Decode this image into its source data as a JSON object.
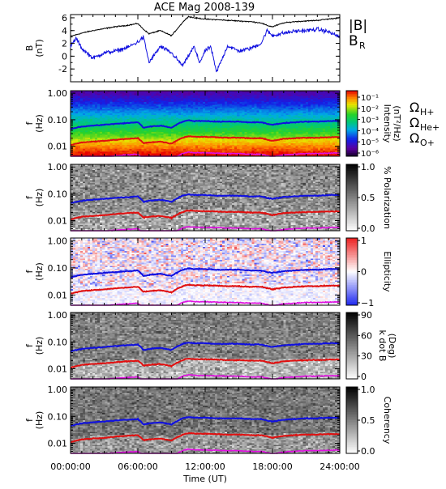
{
  "chart_data": [
    {
      "type": "line",
      "title": "ACE Mag 2008-139",
      "ylabel": [
        "B",
        "(nT)"
      ],
      "yticks": [
        "6",
        "4",
        "2",
        "0",
        "-2"
      ],
      "ylim": [
        -4,
        6.5
      ],
      "xlim": [
        0,
        24
      ],
      "series": [
        {
          "name": "|B|",
          "color": "#000000",
          "x": [
            0,
            1,
            2,
            3,
            4,
            5,
            6,
            6.5,
            7,
            8,
            9,
            10,
            10.5,
            11,
            12,
            13,
            14,
            15,
            16,
            17,
            17.5,
            18,
            19,
            20,
            21,
            22,
            23,
            24
          ],
          "y": [
            3.1,
            3.6,
            4.0,
            4.3,
            4.6,
            4.8,
            5.1,
            4.2,
            3.5,
            4.0,
            3.2,
            5.3,
            6.2,
            6.0,
            5.8,
            5.7,
            5.6,
            5.5,
            5.4,
            5.2,
            4.8,
            4.6,
            5.2,
            5.4,
            5.5,
            5.6,
            5.8,
            6.0
          ]
        },
        {
          "name": "B_R",
          "color": "#1010e0",
          "x": [
            0,
            0.5,
            1,
            2,
            3,
            4,
            5,
            6,
            6.5,
            7,
            8,
            9,
            10,
            10.5,
            11,
            11.5,
            12,
            12.5,
            13,
            14,
            15,
            16,
            17,
            17.5,
            18,
            19,
            20,
            21,
            22,
            23,
            24
          ],
          "y": [
            1.5,
            2.8,
            1.2,
            -0.3,
            0.5,
            0.8,
            1.3,
            2.2,
            3.0,
            -1.0,
            1.5,
            0.5,
            -1.5,
            0.0,
            1.5,
            -1.0,
            0.8,
            1.5,
            -2.5,
            1.6,
            0.8,
            1.2,
            2.0,
            4.0,
            3.2,
            3.6,
            3.9,
            4.0,
            4.2,
            3.8,
            3.0
          ]
        }
      ]
    },
    {
      "type": "heatmap",
      "ylabel": [
        "f",
        "(Hz)"
      ],
      "yticks": [
        "1.00",
        "0.10",
        "0.01"
      ],
      "colorbar": {
        "label": [
          "Intensity",
          "(nT²/Hz)"
        ],
        "ticks": [
          "10⁻¹",
          "10⁻²",
          "10⁻³",
          "10⁻⁴",
          "10⁻⁵",
          "10⁻⁶"
        ],
        "colormap": "rainbow"
      },
      "gyro_labels": [
        {
          "text": "ΩH+",
          "color": "#1010e0"
        },
        {
          "text": "ΩHe+",
          "color": "#e01010"
        },
        {
          "text": "ΩO+",
          "color": "#e010e0"
        }
      ]
    },
    {
      "type": "heatmap",
      "ylabel": [
        "f",
        "(Hz)"
      ],
      "yticks": [
        "1.00",
        "0.10",
        "0.01"
      ],
      "colorbar": {
        "label": [
          "% Polarization"
        ],
        "ticks": [
          "1.0",
          "0.5",
          "0.0"
        ],
        "colormap": "gray"
      }
    },
    {
      "type": "heatmap",
      "ylabel": [
        "f",
        "(Hz)"
      ],
      "yticks": [
        "1.00",
        "0.10",
        "0.01"
      ],
      "colorbar": {
        "label": [
          "Ellipticity"
        ],
        "ticks": [
          "1",
          "0",
          "−1"
        ],
        "colormap": "bwr"
      }
    },
    {
      "type": "heatmap",
      "ylabel": [
        "f",
        "(Hz)"
      ],
      "yticks": [
        "1.00",
        "0.10",
        "0.01"
      ],
      "colorbar": {
        "label": [
          "k dot B",
          "(Deg)"
        ],
        "ticks": [
          "90",
          "60",
          "30",
          "0"
        ],
        "colormap": "gray"
      }
    },
    {
      "type": "heatmap",
      "ylabel": [
        "f",
        "(Hz)"
      ],
      "yticks": [
        "1.00",
        "0.10",
        "0.01"
      ],
      "colorbar": {
        "label": [
          "Coherency"
        ],
        "ticks": [
          "1.0",
          "0.5",
          "0.0"
        ],
        "colormap": "gray"
      },
      "xticks": [
        "00:00:00",
        "06:00:00",
        "12:00:00",
        "18:00:00",
        "24:00:00"
      ],
      "xlabel": "Time (UT)"
    }
  ],
  "gyrofrequency_lines": {
    "x": [
      0,
      1,
      2,
      3,
      4,
      5,
      6,
      6.5,
      7,
      8,
      9,
      10,
      10.5,
      11,
      12,
      13,
      14,
      15,
      16,
      17,
      17.5,
      18,
      19,
      20,
      21,
      22,
      23,
      24
    ],
    "H+": [
      0.045,
      0.055,
      0.06,
      0.065,
      0.07,
      0.075,
      0.08,
      0.05,
      0.055,
      0.06,
      0.05,
      0.085,
      0.095,
      0.09,
      0.09,
      0.085,
      0.085,
      0.085,
      0.08,
      0.08,
      0.07,
      0.065,
      0.075,
      0.08,
      0.085,
      0.085,
      0.09,
      0.09
    ],
    "He+": [
      0.011,
      0.014,
      0.015,
      0.016,
      0.0175,
      0.019,
      0.02,
      0.013,
      0.014,
      0.015,
      0.0125,
      0.021,
      0.024,
      0.023,
      0.0225,
      0.022,
      0.021,
      0.021,
      0.02,
      0.02,
      0.018,
      0.016,
      0.019,
      0.02,
      0.021,
      0.021,
      0.022,
      0.022
    ],
    "O+": [
      0.0028,
      0.0035,
      0.0038,
      0.004,
      0.0044,
      0.0047,
      0.005,
      0.0032,
      0.0035,
      0.0038,
      0.0031,
      0.0053,
      0.006,
      0.0057,
      0.0056,
      0.0055,
      0.0053,
      0.0053,
      0.005,
      0.005,
      0.0045,
      0.004,
      0.0047,
      0.005,
      0.0053,
      0.0053,
      0.0055,
      0.0056
    ]
  }
}
